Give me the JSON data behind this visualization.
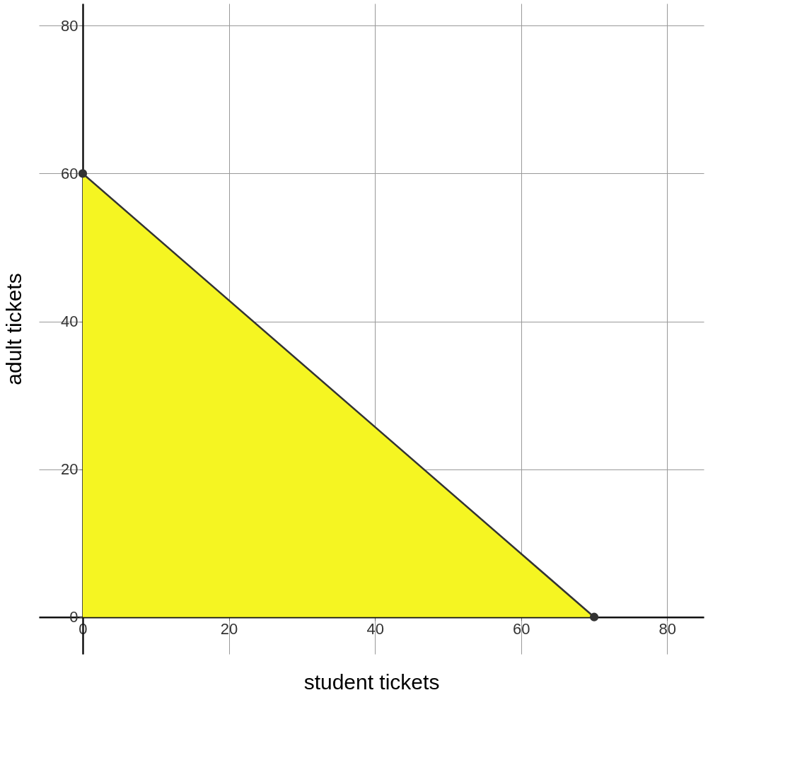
{
  "chart_data": {
    "type": "area",
    "xlabel": "student tickets",
    "ylabel": "adult tickets",
    "xlim": [
      -6,
      85
    ],
    "ylim": [
      -5,
      83
    ],
    "xticks": [
      0,
      20,
      40,
      60,
      80
    ],
    "yticks": [
      0,
      20,
      40,
      60,
      80
    ],
    "grid": true,
    "marker": "circle",
    "line_style": "solid",
    "series": [
      {
        "color": "#f5f522",
        "x": [
          0,
          70
        ],
        "values": [
          60,
          0
        ]
      }
    ]
  }
}
